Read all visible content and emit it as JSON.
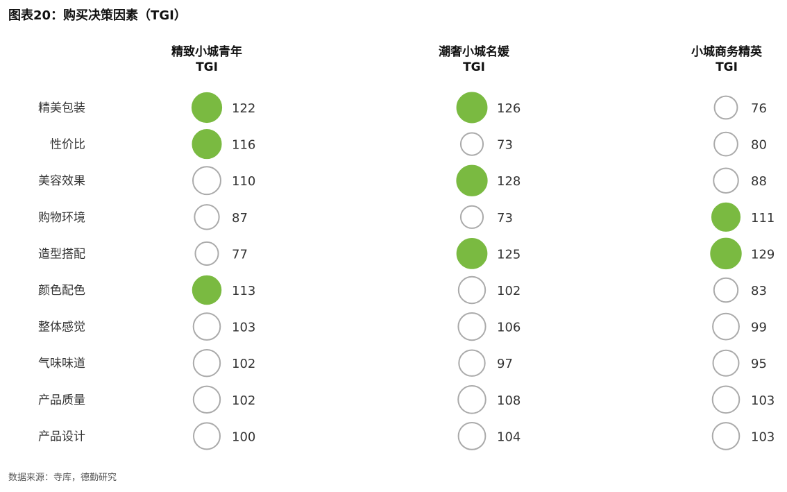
{
  "title": "图表20：购买决策因素（TGI）",
  "source": "数据来源：寺库，德勤研究",
  "chart_data": {
    "type": "bubble-table",
    "title": "图表20：购买决策因素（TGI）",
    "categories": [
      "精美包装",
      "性价比",
      "美容效果",
      "购物环境",
      "造型搭配",
      "颜色配色",
      "整体感觉",
      "气味味道",
      "产品质量",
      "产品设计"
    ],
    "series": [
      {
        "name": "精致小城青年",
        "sub": "TGI",
        "values": [
          122,
          116,
          110,
          87,
          77,
          113,
          103,
          102,
          102,
          100
        ],
        "highlighted": [
          true,
          true,
          false,
          false,
          false,
          true,
          false,
          false,
          false,
          false
        ]
      },
      {
        "name": "潮奢小城名媛",
        "sub": "TGI",
        "values": [
          126,
          73,
          128,
          73,
          125,
          102,
          106,
          97,
          108,
          104
        ],
        "highlighted": [
          true,
          false,
          true,
          false,
          true,
          false,
          false,
          false,
          false,
          false
        ]
      },
      {
        "name": "小城商务精英",
        "sub": "TGI",
        "values": [
          76,
          80,
          88,
          111,
          129,
          83,
          99,
          95,
          103,
          103
        ],
        "highlighted": [
          false,
          false,
          false,
          true,
          true,
          false,
          false,
          false,
          false,
          false
        ]
      }
    ],
    "colors": {
      "highlight": "#7aba41",
      "outline": "#aaaaaa"
    }
  }
}
